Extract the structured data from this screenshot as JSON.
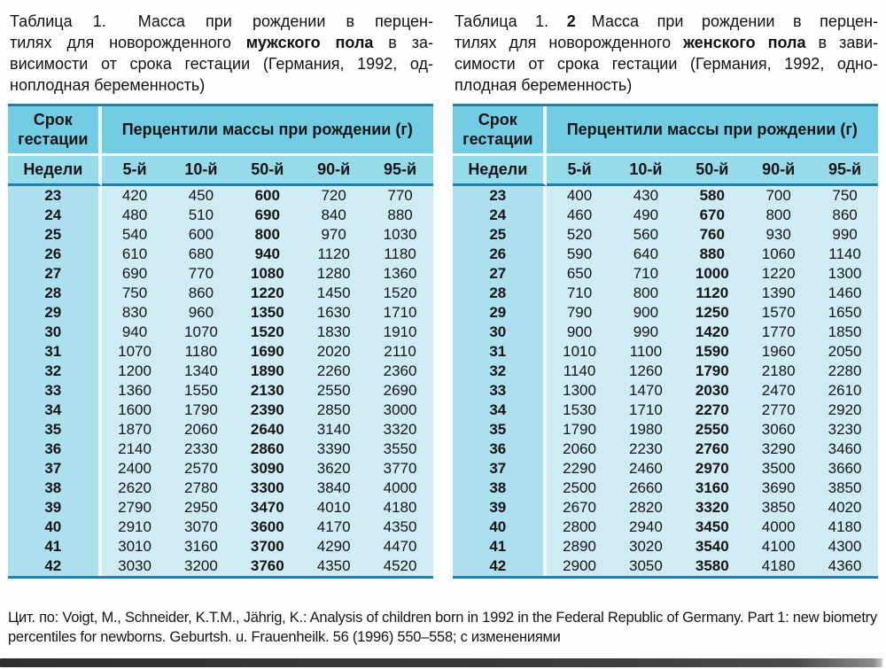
{
  "colors": {
    "header_row1_bg": "#72cde4",
    "header_row2_bg": "#97daea",
    "week_col_bg": "#ade0ee",
    "cell_bg": "#cfecf4",
    "border_dark": "#2480aa",
    "separator_white": "#eef7fa",
    "bottom_bar": "#383838"
  },
  "titles": {
    "male": {
      "lines": [
        {
          "j": 1,
          "segs": [
            {
              "t": "Таблица 1.  ",
              "b": 0
            },
            {
              "t": "Масса при рождении в перцен-",
              "b": 0
            }
          ]
        },
        {
          "j": 1,
          "segs": [
            {
              "t": "тилях для новорожденного ",
              "b": 0
            },
            {
              "t": "мужского пола",
              "b": 1
            },
            {
              "t": " в за-",
              "b": 0
            }
          ]
        },
        {
          "j": 1,
          "segs": [
            {
              "t": "висимости от срока гестации (Германия, 1992, од-",
              "b": 0
            }
          ]
        },
        {
          "j": 0,
          "segs": [
            {
              "t": "ноплодная беременность)",
              "b": 0
            }
          ]
        }
      ]
    },
    "female": {
      "lines": [
        {
          "j": 1,
          "segs": [
            {
              "t": "Таблица 1. ",
              "b": 0
            },
            {
              "t": "2",
              "b": 1
            },
            {
              "t": " ",
              "b": 0
            },
            {
              "t": "Масса при рождении в перцен-",
              "b": 0
            }
          ]
        },
        {
          "j": 1,
          "segs": [
            {
              "t": "тилях для новорожденного ",
              "b": 0
            },
            {
              "t": "женского пола",
              "b": 1
            },
            {
              "t": " в зави-",
              "b": 0
            }
          ]
        },
        {
          "j": 1,
          "segs": [
            {
              "t": "симости от срока гестации (Германия, 1992, одно-",
              "b": 0
            }
          ]
        },
        {
          "j": 0,
          "segs": [
            {
              "t": "плодная беременность)",
              "b": 0
            }
          ]
        }
      ]
    }
  },
  "table_header": {
    "gestation": "Срок гестации",
    "percentiles": "Перцентили массы при рождении (г)",
    "weeks": "Недели",
    "cols": [
      "5-й",
      "10-й",
      "50-й",
      "90-й",
      "95-й"
    ]
  },
  "tables": {
    "male": {
      "rows": [
        [
          23,
          420,
          450,
          600,
          720,
          770
        ],
        [
          24,
          480,
          510,
          690,
          840,
          880
        ],
        [
          25,
          540,
          600,
          800,
          970,
          1030
        ],
        [
          26,
          610,
          680,
          940,
          1120,
          1180
        ],
        [
          27,
          690,
          770,
          1080,
          1280,
          1360
        ],
        [
          28,
          750,
          860,
          1220,
          1450,
          1520
        ],
        [
          29,
          830,
          960,
          1350,
          1630,
          1710
        ],
        [
          30,
          940,
          1070,
          1520,
          1830,
          1910
        ],
        [
          31,
          1070,
          1180,
          1690,
          2020,
          2110
        ],
        [
          32,
          1200,
          1340,
          1890,
          2260,
          2360
        ],
        [
          33,
          1360,
          1550,
          2130,
          2550,
          2690
        ],
        [
          34,
          1600,
          1790,
          2390,
          2850,
          3000
        ],
        [
          35,
          1870,
          2060,
          2640,
          3140,
          3320
        ],
        [
          36,
          2140,
          2330,
          2860,
          3390,
          3550
        ],
        [
          37,
          2400,
          2570,
          3090,
          3620,
          3770
        ],
        [
          38,
          2620,
          2780,
          3300,
          3840,
          4000
        ],
        [
          39,
          2790,
          2950,
          3470,
          4010,
          4180
        ],
        [
          40,
          2910,
          3070,
          3600,
          4170,
          4350
        ],
        [
          41,
          3010,
          3160,
          3700,
          4290,
          4470
        ],
        [
          42,
          3030,
          3200,
          3760,
          4350,
          4520
        ]
      ]
    },
    "female": {
      "rows": [
        [
          23,
          400,
          430,
          580,
          700,
          750
        ],
        [
          24,
          460,
          490,
          670,
          800,
          860
        ],
        [
          25,
          520,
          560,
          760,
          930,
          990
        ],
        [
          26,
          590,
          640,
          880,
          1060,
          1140
        ],
        [
          27,
          650,
          710,
          1000,
          1220,
          1300
        ],
        [
          28,
          710,
          800,
          1120,
          1390,
          1460
        ],
        [
          29,
          790,
          900,
          1250,
          1570,
          1650
        ],
        [
          30,
          900,
          990,
          1420,
          1770,
          1850
        ],
        [
          31,
          1010,
          1100,
          1590,
          1960,
          2050
        ],
        [
          32,
          1140,
          1260,
          1790,
          2180,
          2280
        ],
        [
          33,
          1300,
          1470,
          2030,
          2470,
          2610
        ],
        [
          34,
          1530,
          1710,
          2270,
          2770,
          2920
        ],
        [
          35,
          1790,
          1980,
          2550,
          3060,
          3230
        ],
        [
          36,
          2060,
          2230,
          2760,
          3290,
          3460
        ],
        [
          37,
          2290,
          2460,
          2970,
          3500,
          3660
        ],
        [
          38,
          2500,
          2660,
          3160,
          3690,
          3850
        ],
        [
          39,
          2670,
          2820,
          3320,
          3850,
          4020
        ],
        [
          40,
          2800,
          2940,
          3450,
          4000,
          4180
        ],
        [
          41,
          2890,
          3020,
          3540,
          4100,
          4300
        ],
        [
          42,
          2900,
          3050,
          3580,
          4180,
          4360
        ]
      ]
    }
  },
  "citation": "Цит. по: Voigt, M., Schneider, K.T.M., Jährig, K.: Analysis of children born in 1992 in the Federal Republic of Germany. Part 1: new biometry percentiles for newborns. Geburtsh. u. Frauenheilk. 56 (1996) 550–558; с изменениями"
}
